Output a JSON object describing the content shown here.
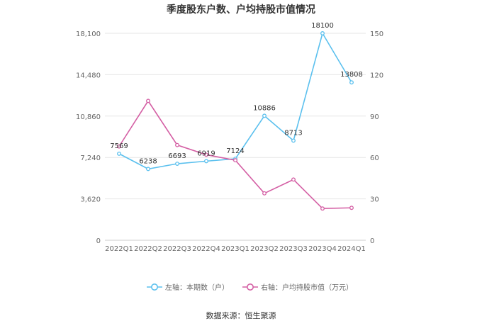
{
  "title": "季度股东户数、户均持股市值情况",
  "source": "数据来源：恒生聚源",
  "chart_data": {
    "type": "line",
    "categories": [
      "2022Q1",
      "2022Q2",
      "2022Q3",
      "2022Q4",
      "2023Q1",
      "2023Q2",
      "2023Q3",
      "2023Q4",
      "2024Q1"
    ],
    "left_axis": {
      "ticks": [
        "0",
        "3,620",
        "7,240",
        "10,860",
        "14,480",
        "18,100"
      ],
      "ylim": [
        0,
        18100
      ]
    },
    "right_axis": {
      "ticks": [
        "0",
        "30",
        "60",
        "90",
        "120",
        "150"
      ],
      "ylim": [
        0,
        150
      ]
    },
    "series": [
      {
        "name": "左轴：本期数（户）",
        "axis": "left",
        "color": "#5bc0ee",
        "values": [
          7569,
          6238,
          6693,
          6919,
          7124,
          10886,
          8713,
          18100,
          13808
        ],
        "labels": [
          "7569",
          "6238",
          "6693",
          "6919",
          "7124",
          "10886",
          "8713",
          "18100",
          "13808"
        ]
      },
      {
        "name": "右轴：户均持股市值（万元）",
        "axis": "right",
        "color": "#d45fa4",
        "values": [
          68,
          101,
          69,
          62,
          58,
          34,
          44,
          23,
          23.5
        ]
      }
    ],
    "grid": true,
    "legend": "bottom"
  }
}
